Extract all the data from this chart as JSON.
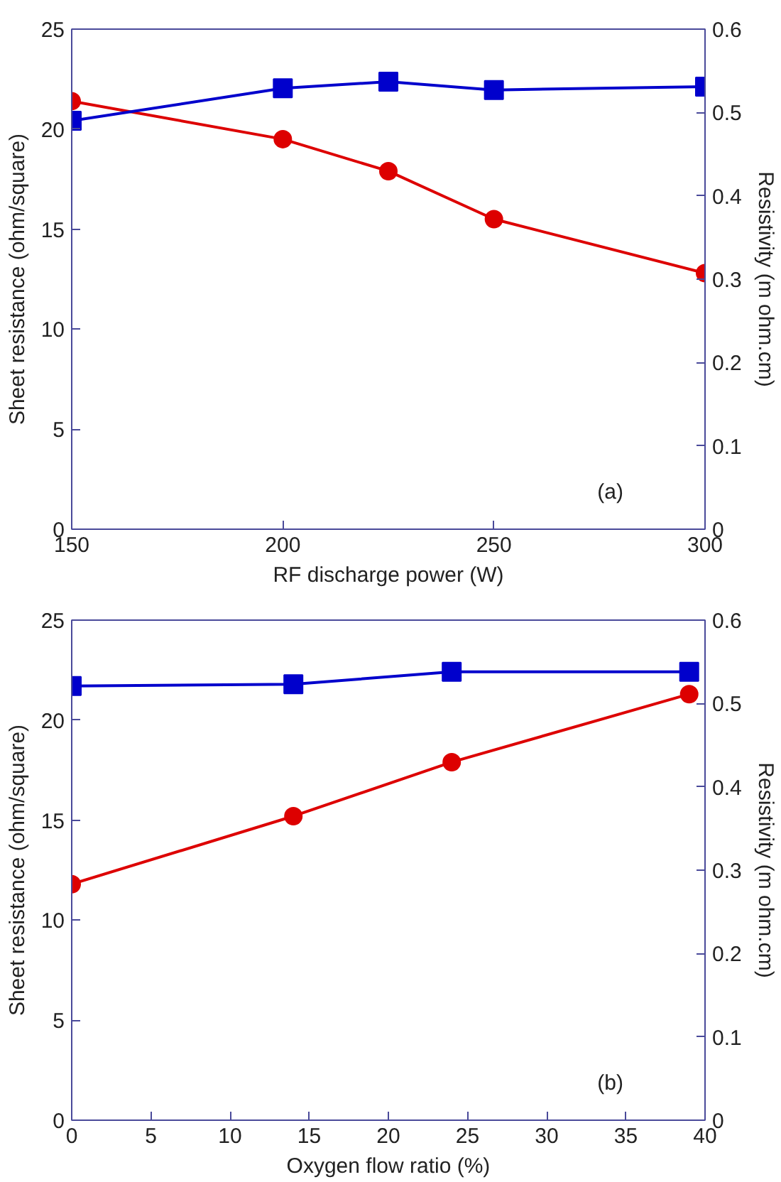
{
  "chart_data": [
    {
      "type": "line",
      "xlabel": "RF discharge power (W)",
      "ylabel": "Sheet resistance (ohm/square)",
      "y2label": "Resistivity (m ohm.cm)",
      "annotations": [
        "(a)"
      ],
      "x": [
        150,
        200,
        225,
        250,
        300
      ],
      "xlim": [
        150,
        300
      ],
      "xticks": [
        150,
        200,
        250,
        300
      ],
      "ylim": [
        0,
        25
      ],
      "yticks": [
        0,
        5,
        10,
        15,
        20,
        25
      ],
      "y2lim": [
        0,
        0.6
      ],
      "y2ticks": [
        0,
        0.1,
        0.2,
        0.3,
        0.4,
        0.5,
        0.6
      ],
      "grid": false,
      "line_style": "solid",
      "series": [
        {
          "color": "#dd0000",
          "marker": "circle",
          "values": [
            21.4,
            19.5,
            17.9,
            15.5,
            12.8
          ]
        },
        {
          "color": "#0000cc",
          "marker": "square",
          "axis": "y2",
          "values": [
            0.49,
            0.529,
            0.537,
            0.527,
            0.531
          ]
        }
      ]
    },
    {
      "type": "line",
      "xlabel": "Oxygen flow ratio (%)",
      "ylabel": "Sheet resistance (ohm/square)",
      "y2label": "Resistivity (m ohm.cm)",
      "annotations": [
        "(b)"
      ],
      "x": [
        0,
        14,
        24,
        39
      ],
      "xlim": [
        0,
        40
      ],
      "xticks": [
        0,
        5,
        10,
        15,
        20,
        25,
        30,
        35,
        40
      ],
      "ylim": [
        0,
        25
      ],
      "yticks": [
        0,
        5,
        10,
        15,
        20,
        25
      ],
      "y2lim": [
        0,
        0.6
      ],
      "y2ticks": [
        0,
        0.1,
        0.2,
        0.3,
        0.4,
        0.5,
        0.6
      ],
      "grid": false,
      "line_style": "solid",
      "series": [
        {
          "color": "#dd0000",
          "marker": "circle",
          "values": [
            11.8,
            15.2,
            17.9,
            21.3
          ]
        },
        {
          "color": "#0000cc",
          "marker": "square",
          "axis": "y2",
          "values": [
            0.521,
            0.523,
            0.538,
            0.538
          ]
        }
      ]
    }
  ]
}
